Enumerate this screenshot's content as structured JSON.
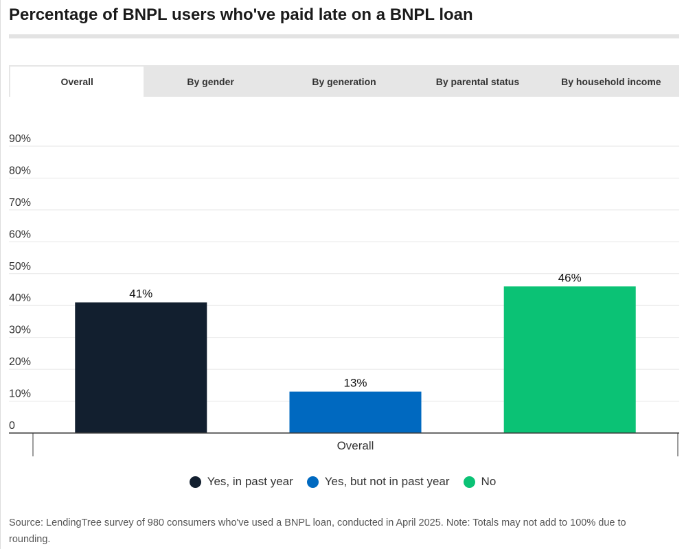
{
  "tabs": [
    {
      "label": "Overall",
      "active": true
    },
    {
      "label": "By gender",
      "active": false
    },
    {
      "label": "By generation",
      "active": false
    },
    {
      "label": "By parental status",
      "active": false
    },
    {
      "label": "By household income",
      "active": false
    }
  ],
  "chart_data": {
    "type": "bar",
    "title": "Percentage of BNPL users who've paid late on a BNPL loan",
    "categories": [
      "Overall"
    ],
    "series": [
      {
        "name": "Yes, in past year",
        "values": [
          41
        ],
        "labels": [
          "41%"
        ],
        "color": "#121f2f"
      },
      {
        "name": "Yes, but not in past year",
        "values": [
          13
        ],
        "labels": [
          "13%"
        ],
        "color": "#0069c0"
      },
      {
        "name": "No",
        "values": [
          46
        ],
        "labels": [
          "46%"
        ],
        "color": "#0bc275"
      }
    ],
    "y_axis": {
      "ticks": [
        0,
        10,
        20,
        30,
        40,
        50,
        60,
        70,
        80,
        90
      ],
      "tick_labels": [
        "0",
        "10%",
        "20%",
        "30%",
        "40%",
        "50%",
        "60%",
        "70%",
        "80%",
        "90%"
      ]
    },
    "ylim": [
      0,
      90
    ],
    "grid": true,
    "legend": "bottom"
  },
  "source_note": "Source: LendingTree survey of 980 consumers who've used a BNPL loan, conducted in April 2025. Note: Totals may not add to 100% due to rounding."
}
